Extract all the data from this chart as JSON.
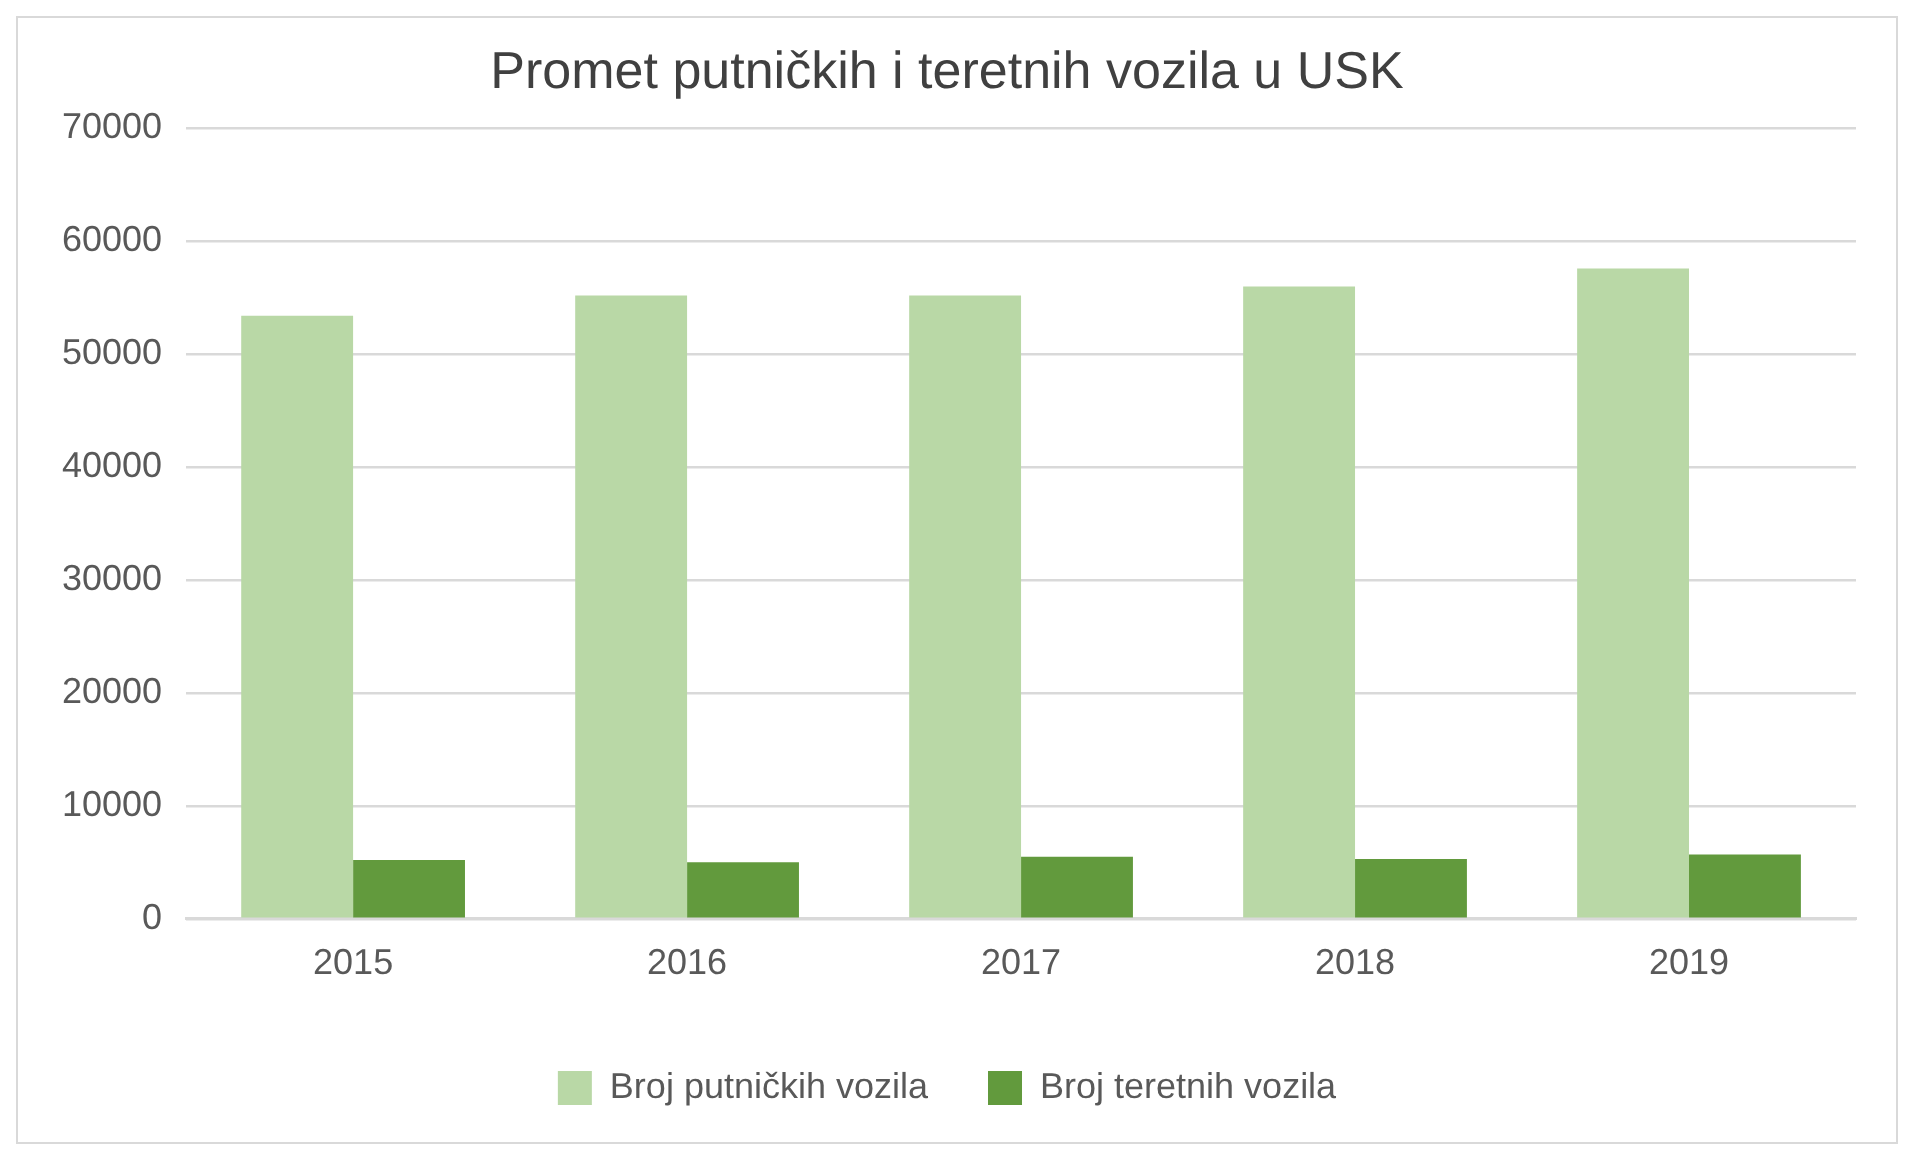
{
  "chart_data": {
    "type": "bar",
    "title": "Promet putničkih i teretnih vozila u USK",
    "categories": [
      "2015",
      "2016",
      "2017",
      "2018",
      "2019"
    ],
    "series": [
      {
        "name": "Broj putničkih vozila",
        "color": "#b9d8a6",
        "values": [
          53400,
          55200,
          55200,
          56000,
          57600
        ]
      },
      {
        "name": "Broj teretnih vozila",
        "color": "#629a3d",
        "values": [
          5200,
          5000,
          5500,
          5300,
          5700
        ]
      }
    ],
    "ylim": [
      0,
      70000
    ],
    "yticks": [
      0,
      10000,
      20000,
      30000,
      40000,
      50000,
      60000,
      70000
    ],
    "grid": "y",
    "legend": "bottom"
  }
}
